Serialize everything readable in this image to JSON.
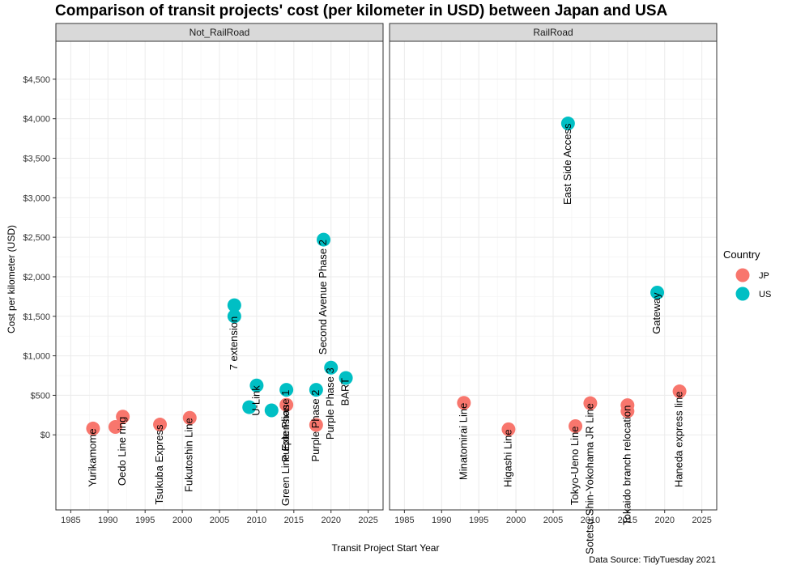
{
  "chart_data": {
    "type": "scatter",
    "title": "Comparison of transit projects' cost (per kilometer in USD) between Japan and USA",
    "xlabel": "Transit Project Start Year",
    "ylabel": "Cost per kilometer (USD)",
    "caption": "Data Source: TidyTuesday 2021",
    "xlim": [
      1983,
      2027
    ],
    "ylim": [
      -950,
      4980
    ],
    "x_ticks": [
      1985,
      1990,
      1995,
      2000,
      2005,
      2010,
      2015,
      2020,
      2025
    ],
    "x_tick_labels": [
      "1985",
      "1990",
      "1995",
      "2000",
      "2005",
      "2010",
      "2015",
      "2020",
      "2025"
    ],
    "y_ticks": [
      0,
      500,
      1000,
      1500,
      2000,
      2500,
      3000,
      3500,
      4000,
      4500
    ],
    "y_tick_labels": [
      "$0",
      "$500",
      "$1,000",
      "$1,500",
      "$2,000",
      "$2,500",
      "$3,000",
      "$3,500",
      "$4,000",
      "$4,500"
    ],
    "grid": true,
    "legend": {
      "title": "Country",
      "position": "right",
      "entries": [
        {
          "label": "JP",
          "color": "#F8766D"
        },
        {
          "label": "US",
          "color": "#00BFC4"
        }
      ]
    },
    "panels": [
      {
        "name": "Not_RailRoad",
        "points": [
          {
            "x": 1988,
            "y": 80,
            "country": "JP",
            "label": "Yurikamome"
          },
          {
            "x": 1991,
            "y": 100,
            "country": "JP",
            "label": ""
          },
          {
            "x": 1992,
            "y": 230,
            "country": "JP",
            "label": "Oedo Line ring"
          },
          {
            "x": 1997,
            "y": 130,
            "country": "JP",
            "label": "Tsukuba Express"
          },
          {
            "x": 2001,
            "y": 215,
            "country": "JP",
            "label": "Fukutoshin Line"
          },
          {
            "x": 2007,
            "y": 1640,
            "country": "US",
            "label": ""
          },
          {
            "x": 2007,
            "y": 1500,
            "country": "US",
            "label": "7 extension"
          },
          {
            "x": 2009,
            "y": 350,
            "country": "US",
            "label": ""
          },
          {
            "x": 2010,
            "y": 625,
            "country": "US",
            "label": "U-Link"
          },
          {
            "x": 2012,
            "y": 310,
            "country": "US",
            "label": ""
          },
          {
            "x": 2014,
            "y": 380,
            "country": "JP",
            "label": "Green Line Extension"
          },
          {
            "x": 2014,
            "y": 570,
            "country": "US",
            "label": "Purple Phase 1"
          },
          {
            "x": 2018,
            "y": 570,
            "country": "US",
            "label": "Purple Phase 2"
          },
          {
            "x": 2018,
            "y": 125,
            "country": "JP",
            "label": ""
          },
          {
            "x": 2019,
            "y": 2470,
            "country": "US",
            "label": "Second Avenue Phase 2"
          },
          {
            "x": 2020,
            "y": 850,
            "country": "US",
            "label": "Purple Phase 3"
          },
          {
            "x": 2022,
            "y": 720,
            "country": "US",
            "label": "BART"
          }
        ]
      },
      {
        "name": "RailRoad",
        "points": [
          {
            "x": 1993,
            "y": 405,
            "country": "JP",
            "label": "Minatomirai Line"
          },
          {
            "x": 1999,
            "y": 70,
            "country": "JP",
            "label": "Higashi Line"
          },
          {
            "x": 2007,
            "y": 3940,
            "country": "US",
            "label": "East Side Access"
          },
          {
            "x": 2008,
            "y": 110,
            "country": "JP",
            "label": "Tokyo-Ueno Line"
          },
          {
            "x": 2010,
            "y": 400,
            "country": "JP",
            "label": "Sotetsu Shin-Yokohama JR Line"
          },
          {
            "x": 2015,
            "y": 375,
            "country": "JP",
            "label": "Tokaido branch relocation"
          },
          {
            "x": 2015,
            "y": 300,
            "country": "JP",
            "label": ""
          },
          {
            "x": 2019,
            "y": 1800,
            "country": "US",
            "label": "Gateway"
          },
          {
            "x": 2022,
            "y": 550,
            "country": "JP",
            "label": "Haneda express line"
          }
        ]
      }
    ]
  }
}
